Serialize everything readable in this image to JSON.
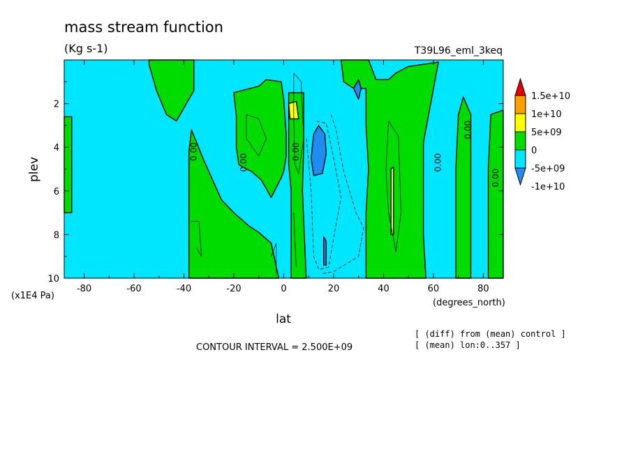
{
  "chart_data": {
    "type": "heatmap",
    "title": "mass stream function",
    "subtitle": "(Kg s-1)",
    "run_label": "T39L96_eml_3keq",
    "xlabel": "lat",
    "xunits": "(degrees_north)",
    "ylabel": "plev",
    "yunits": "(x1E4 Pa)",
    "xlim": [
      -88,
      88
    ],
    "ylim": [
      10,
      0
    ],
    "x_ticks": [
      -80,
      -60,
      -40,
      -20,
      0,
      20,
      40,
      60,
      80
    ],
    "x_tick_labels": [
      "-80",
      "-60",
      "-40",
      "-20",
      "0",
      "20",
      "40",
      "60",
      "80"
    ],
    "y_ticks": [
      2,
      4,
      6,
      8,
      10
    ],
    "y_tick_labels": [
      "2",
      "4",
      "6",
      "8",
      "10"
    ],
    "contour_interval": "CONTOUR INTERVAL = 2.500E+09",
    "notes": [
      "[ (diff) from (mean) control ]",
      "[ (mean) lon:0..357 ]"
    ],
    "contour_label": "0.00",
    "colorbar": {
      "levels": [
        -10000000000.0,
        -5000000000.0,
        0,
        5000000000.0,
        10000000000.0,
        15000000000.0
      ],
      "labels": [
        "-1e+10",
        "-5e+09",
        "0",
        "5e+09",
        "1e+10",
        "1.5e+10"
      ],
      "colors": [
        "#1e8cf0",
        "#00e6ff",
        "#00dc00",
        "#ffff00",
        "#ffa000",
        "#e60000"
      ],
      "extend": "both"
    },
    "regions": [
      {
        "name": "green-south-pole",
        "value_range": "0 to 5e+09",
        "color": "#00dc00",
        "poly": [
          [
            -88,
            2.6
          ],
          [
            -85,
            2.6
          ],
          [
            -85,
            7
          ],
          [
            -88,
            7
          ]
        ]
      },
      {
        "name": "green-top-left",
        "value_range": "0 to 5e+09",
        "color": "#00dc00",
        "poly": [
          [
            -54,
            0
          ],
          [
            -36,
            0
          ],
          [
            -36,
            1.4
          ],
          [
            -43,
            2.8
          ],
          [
            -47,
            2.5
          ],
          [
            -51,
            1.4
          ],
          [
            -54,
            0.2
          ]
        ]
      },
      {
        "name": "green-tropical-south",
        "value_range": "0 to 5e+09",
        "color": "#00dc00",
        "poly": [
          [
            -37,
            3.2
          ],
          [
            -32,
            4.6
          ],
          [
            -25,
            6.4
          ],
          [
            -20,
            7.0
          ],
          [
            -14,
            7.6
          ],
          [
            -10,
            7.9
          ],
          [
            -5,
            8.4
          ],
          [
            -2,
            10
          ],
          [
            -38,
            10
          ],
          [
            -38,
            4.2
          ]
        ]
      },
      {
        "name": "green-tropical-upper",
        "value_range": "0 to 5e+09",
        "color": "#00dc00",
        "poly": [
          [
            -20,
            1.5
          ],
          [
            -10,
            1.2
          ],
          [
            -7,
            0.9
          ],
          [
            -1,
            1.0
          ],
          [
            0,
            1.8
          ],
          [
            1,
            3.4
          ],
          [
            1,
            4.4
          ],
          [
            0,
            5.1
          ],
          [
            -1,
            5.4
          ],
          [
            -5,
            6.3
          ],
          [
            -9,
            5.5
          ],
          [
            -13,
            5.1
          ],
          [
            -15,
            5.0
          ],
          [
            -18,
            4.8
          ],
          [
            -19,
            4.0
          ],
          [
            -19,
            2.6
          ]
        ]
      },
      {
        "name": "green-equator-column",
        "value_range": "0 to 5e+09",
        "color": "#00dc00",
        "poly": [
          [
            2,
            1.5
          ],
          [
            8,
            1.5
          ],
          [
            8,
            4
          ],
          [
            7.5,
            6
          ],
          [
            9,
            10
          ],
          [
            3,
            10
          ],
          [
            3,
            6
          ],
          [
            2,
            4.8
          ]
        ]
      },
      {
        "name": "green-top-right",
        "value_range": "0 to 5e+09",
        "color": "#00dc00",
        "poly": [
          [
            23,
            0
          ],
          [
            34,
            0
          ],
          [
            37,
            0.9
          ],
          [
            42,
            0.9
          ],
          [
            45,
            0.6
          ],
          [
            50,
            0.3
          ],
          [
            62,
            0.1
          ],
          [
            56,
            3.8
          ],
          [
            56,
            8
          ],
          [
            57,
            10
          ],
          [
            33,
            10
          ],
          [
            33,
            7
          ],
          [
            34,
            5
          ],
          [
            33,
            3
          ],
          [
            33,
            1.3
          ],
          [
            28,
            1.3
          ],
          [
            24,
            1
          ]
        ]
      },
      {
        "name": "green-ne-column",
        "value_range": "0 to 5e+09",
        "color": "#00dc00",
        "poly": [
          [
            70,
            2.5
          ],
          [
            72,
            1.7
          ],
          [
            75,
            2.5
          ],
          [
            75,
            10
          ],
          [
            69,
            10
          ],
          [
            69,
            5
          ]
        ]
      },
      {
        "name": "green-north-pole",
        "value_range": "0 to 5e+09",
        "color": "#00dc00",
        "poly": [
          [
            83,
            2.5
          ],
          [
            88,
            2.3
          ],
          [
            88,
            10
          ],
          [
            82,
            10
          ],
          [
            82,
            5
          ]
        ]
      },
      {
        "name": "yellow-upper-blob",
        "value_range": "5e+09 to 1e+10",
        "color": "#ffff00",
        "poly": [
          [
            2,
            2.0
          ],
          [
            5,
            1.9
          ],
          [
            6,
            2.7
          ],
          [
            2.5,
            2.7
          ]
        ]
      },
      {
        "name": "yellow-narrow-40N",
        "value_range": "5e+09 to 1e+10",
        "color": "#ffff00",
        "poly": [
          [
            43,
            5.0
          ],
          [
            44,
            4.9
          ],
          [
            44,
            8.0
          ],
          [
            43,
            8.0
          ]
        ]
      },
      {
        "name": "blue-upper-cell",
        "value_range": "-1e+10 to -5e+09",
        "color": "#1e8cf0",
        "poly": [
          [
            14,
            3.0
          ],
          [
            16.5,
            3.4
          ],
          [
            17,
            4.3
          ],
          [
            15.5,
            5.2
          ],
          [
            12,
            5.3
          ],
          [
            11,
            4.5
          ],
          [
            12,
            3.4
          ]
        ]
      },
      {
        "name": "blue-lower-cell",
        "value_range": "-1e+10 to -5e+09",
        "color": "#1e8cf0",
        "poly": [
          [
            16,
            8.1
          ],
          [
            17,
            8.3
          ],
          [
            17,
            9.4
          ],
          [
            16,
            9.4
          ]
        ]
      },
      {
        "name": "blue-diamond-28N",
        "value_range": "-1e+10 to -5e+09",
        "color": "#1e8cf0",
        "poly": [
          [
            28,
            1.3
          ],
          [
            30,
            0.9
          ],
          [
            31,
            1.3
          ],
          [
            30,
            1.8
          ]
        ]
      }
    ],
    "zero_contour_labels": [
      {
        "lat": -35,
        "plev": 4.2
      },
      {
        "lat": -15,
        "plev": 4.7
      },
      {
        "lat": 6,
        "plev": 4.2
      },
      {
        "lat": 63,
        "plev": 4.7
      },
      {
        "lat": 75,
        "plev": 3.2
      },
      {
        "lat": 86,
        "plev": 5.4
      }
    ],
    "dashed_contours": [
      [
        [
          13,
          2.8
        ],
        [
          17,
          2.9
        ],
        [
          20,
          4.5
        ],
        [
          23,
          6.3
        ],
        [
          21,
          7.5
        ],
        [
          18,
          9.5
        ],
        [
          14,
          9.6
        ],
        [
          12,
          9
        ],
        [
          11,
          6
        ],
        [
          9,
          3.5
        ]
      ],
      [
        [
          19,
          2.5
        ],
        [
          21,
          3.2
        ],
        [
          24,
          5.1
        ],
        [
          29,
          7.0
        ],
        [
          32,
          7.7
        ],
        [
          30,
          9
        ],
        [
          20,
          9.7
        ],
        [
          15,
          9.8
        ]
      ]
    ],
    "thin_solid_contours": [
      [
        [
          -15,
          2.5
        ],
        [
          -10,
          2.7
        ],
        [
          -7,
          3.6
        ],
        [
          -10,
          4.4
        ],
        [
          -15,
          3.6
        ],
        [
          -15,
          2.5
        ]
      ],
      [
        [
          -37,
          7.4
        ],
        [
          -34,
          7.4
        ],
        [
          -33,
          9
        ],
        [
          -35,
          8.6
        ]
      ],
      [
        [
          4,
          0.6
        ],
        [
          7,
          1.0
        ],
        [
          8,
          3.6
        ],
        [
          6,
          5.2
        ],
        [
          4.5,
          4.8
        ],
        [
          4,
          2.6
        ],
        [
          4,
          0.6
        ]
      ],
      [
        [
          42,
          2.8
        ],
        [
          46,
          3.5
        ],
        [
          47,
          7
        ],
        [
          45,
          8.8
        ],
        [
          42,
          7
        ],
        [
          41,
          5
        ],
        [
          42,
          2.8
        ]
      ],
      [
        [
          -5,
          9.0
        ],
        [
          -3,
          8.4
        ],
        [
          -3,
          9.8
        ]
      ],
      [
        [
          4,
          7.0
        ],
        [
          5,
          9.5
        ]
      ]
    ]
  }
}
